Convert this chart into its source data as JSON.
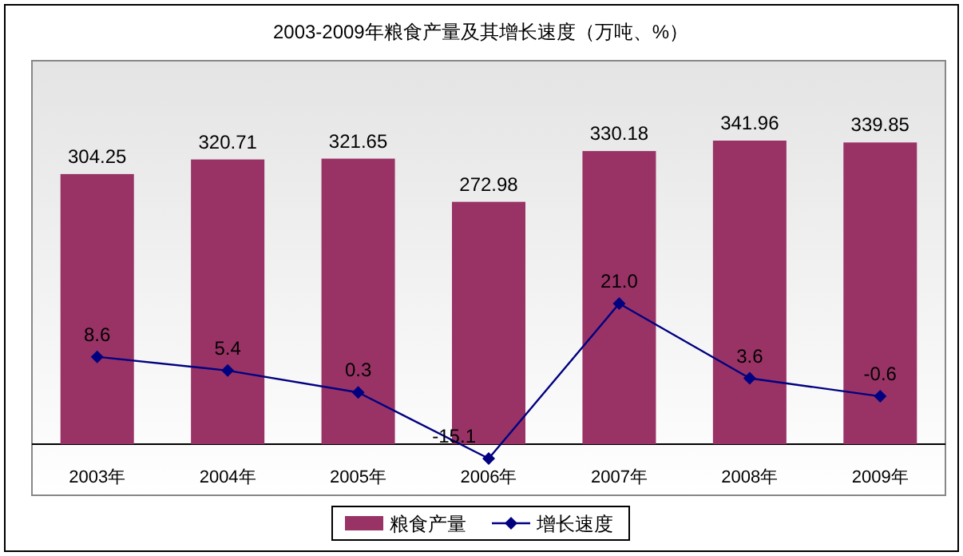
{
  "chart_data": {
    "type": "bar",
    "title": "2003-2009年粮食产量及其增长速度（万吨、%）",
    "categories": [
      "2003年",
      "2004年",
      "2005年",
      "2006年",
      "2007年",
      "2008年",
      "2009年"
    ],
    "series": [
      {
        "name": "粮食产量",
        "color": "#993366",
        "values": [
          304.25,
          320.71,
          321.65,
          272.98,
          330.18,
          341.96,
          339.85
        ],
        "value_labels": [
          "304.25",
          "320.71",
          "321.65",
          "272.98",
          "330.18",
          "341.96",
          "339.85"
        ]
      },
      {
        "name": "增长速度",
        "type": "line",
        "axis": "y2",
        "color": "#000080",
        "marker": "diamond",
        "values": [
          8.6,
          5.4,
          0.3,
          -15.1,
          21.0,
          3.6,
          -0.6
        ],
        "value_labels": [
          "8.6",
          "5.4",
          "0.3",
          "-15.1",
          "21.0",
          "3.6",
          "-0.6"
        ]
      }
    ],
    "legend": "bottom",
    "grid": false
  }
}
